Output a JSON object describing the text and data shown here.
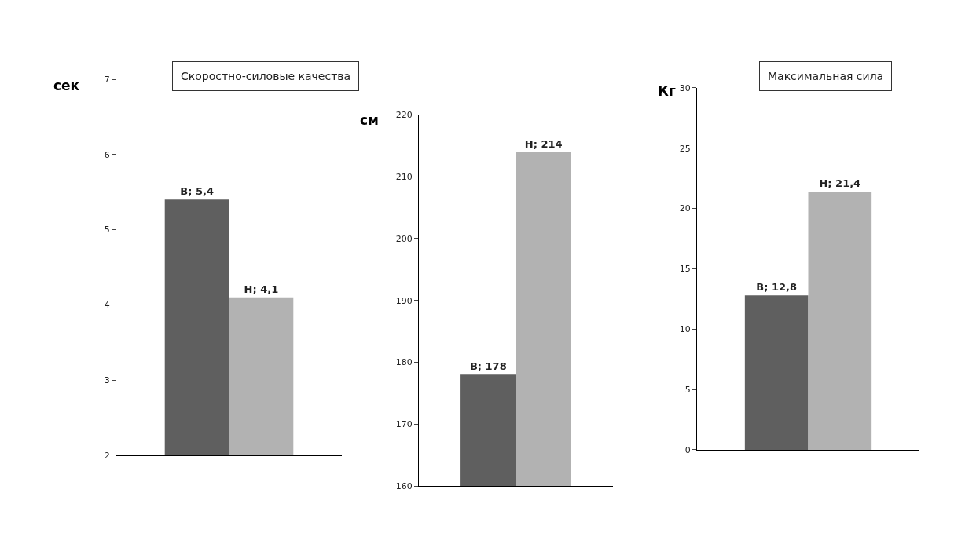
{
  "chart_data": [
    {
      "type": "bar",
      "title": "Скоростно-силовые качества",
      "ylabel": "сек",
      "categories": [
        null
      ],
      "ylim": [
        2,
        7
      ],
      "yticks": [
        2,
        3,
        4,
        5,
        6,
        7
      ],
      "series": [
        {
          "name": "В;",
          "color": "#5f5f5f",
          "values": [
            5.4
          ],
          "value_labels": [
            "5,4"
          ]
        },
        {
          "name": "Н;",
          "color": "#b2b2b2",
          "values": [
            4.1
          ],
          "value_labels": [
            "4,1"
          ]
        }
      ]
    },
    {
      "type": "bar",
      "ylabel": "см",
      "categories": [
        null
      ],
      "ylim": [
        160,
        220
      ],
      "yticks": [
        160,
        170,
        180,
        190,
        200,
        210,
        220
      ],
      "series": [
        {
          "name": "В;",
          "color": "#5f5f5f",
          "values": [
            178
          ],
          "value_labels": [
            "178"
          ]
        },
        {
          "name": "Н;",
          "color": "#b2b2b2",
          "values": [
            214
          ],
          "value_labels": [
            "214"
          ]
        }
      ]
    },
    {
      "type": "bar",
      "title": "Максимальная сила",
      "ylabel": "Кг",
      "categories": [
        null
      ],
      "ylim": [
        0,
        30
      ],
      "yticks": [
        0,
        5,
        10,
        15,
        20,
        25,
        30
      ],
      "series": [
        {
          "name": "В;",
          "color": "#5f5f5f",
          "values": [
            12.8
          ],
          "value_labels": [
            "12,8"
          ]
        },
        {
          "name": "Н;",
          "color": "#b2b2b2",
          "values": [
            21.4
          ],
          "value_labels": [
            "21,4"
          ]
        }
      ]
    }
  ]
}
